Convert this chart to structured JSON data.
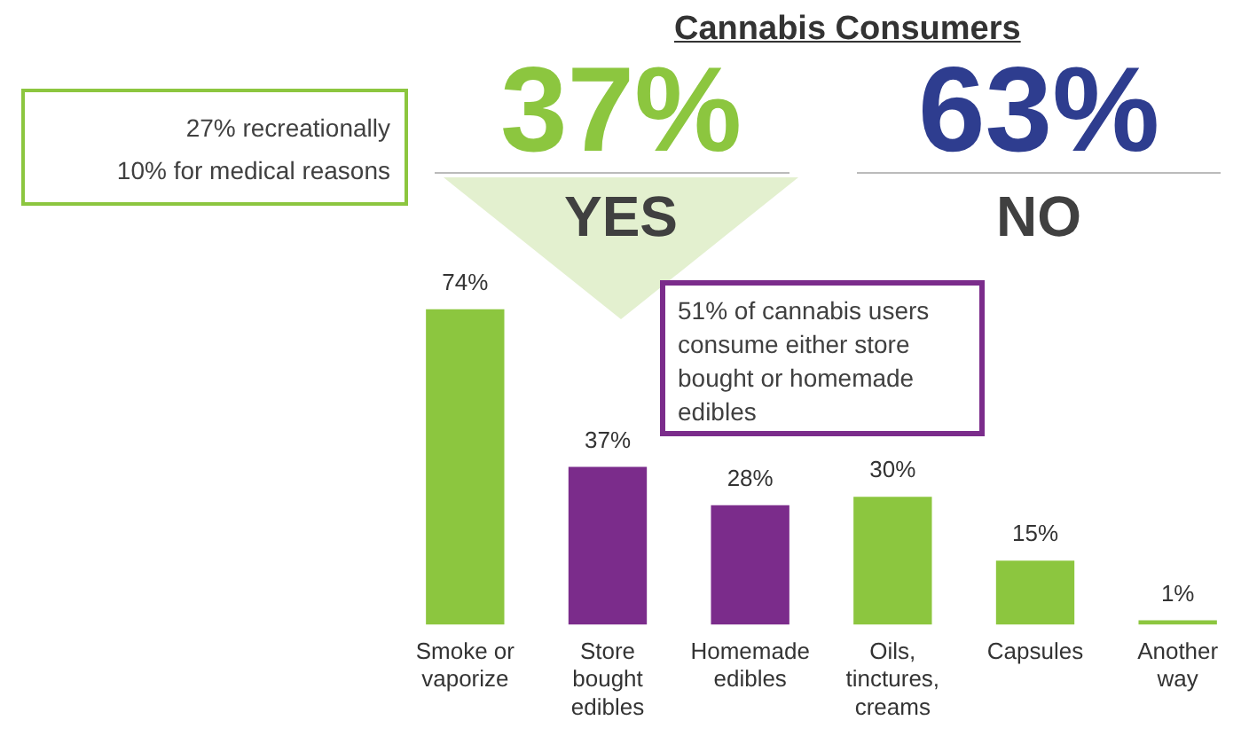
{
  "chart_data": {
    "type": "bar",
    "title": "Cannabis Consumers",
    "categories": [
      "Smoke or vaporize",
      "Store bought edibles",
      "Homemade edibles",
      "Oils, tinctures, creams",
      "Capsules",
      "Another way"
    ],
    "values": [
      74,
      37,
      28,
      30,
      15,
      1
    ],
    "colors": [
      "#8cc63f",
      "#7b2c8b",
      "#7b2c8b",
      "#8cc63f",
      "#8cc63f",
      "#8cc63f"
    ],
    "data_labels": true,
    "value_labels": [
      "74%",
      "37%",
      "28%",
      "30%",
      "15%",
      "1%"
    ],
    "tick_labels": "x",
    "grid": false,
    "legend": false,
    "annotations": [
      "37%",
      "YES",
      "63%",
      "NO",
      "27% recreationally",
      "10% for medical reasons",
      "51% of cannabis users consume either store bought or homemade edibles"
    ]
  }
}
